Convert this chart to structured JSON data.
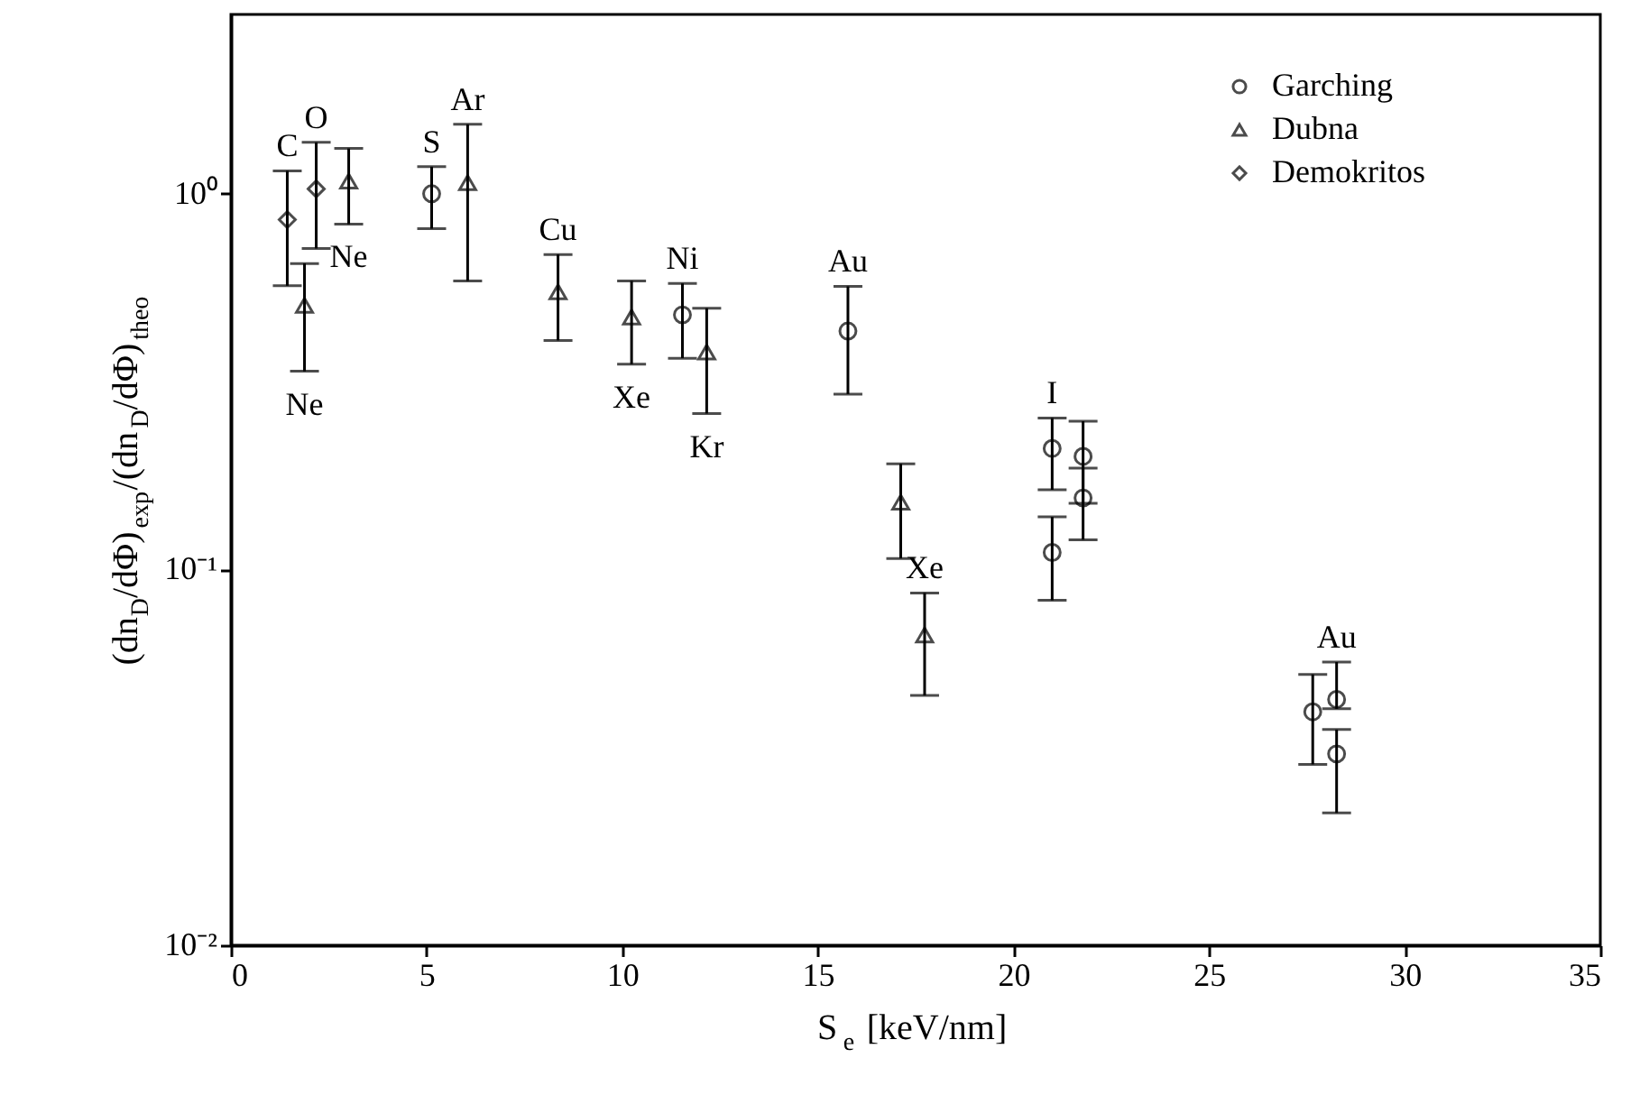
{
  "chart_data": {
    "type": "scatter",
    "xlabel": "S$_{e}$ [keV/nm]",
    "ylabel": "(dn$_{D}$/dΦ)$_{exp}$/(dn$_{D}$/dΦ)$_{theo}$",
    "log": "y",
    "xlim": [
      0,
      35
    ],
    "xticks": [
      0,
      5,
      10,
      15,
      20,
      25,
      30,
      35
    ],
    "ylim": [
      0.01,
      3
    ],
    "yticks": [
      {
        "value": 0.01,
        "label": "10⁻²"
      },
      {
        "value": 0.1,
        "label": "10⁻¹"
      },
      {
        "value": 1,
        "label": "10⁰"
      }
    ],
    "grid": false,
    "legend": "top right",
    "series": [
      {
        "name": "Garching",
        "color": "#000000",
        "marker": "circle",
        "x": [
          5.13,
          11.54,
          15.77,
          20.99,
          21.78,
          21.78,
          20.99,
          27.65,
          28.26,
          28.26
        ],
        "values": [
          1.0,
          0.476,
          0.431,
          0.21,
          0.2,
          0.155,
          0.111,
          0.0418,
          0.0451,
          0.0323
        ],
        "errors": [
          [
            0.807,
            1.18
          ],
          [
            0.365,
            0.577
          ],
          [
            0.293,
            0.567
          ],
          [
            0.163,
            0.253
          ],
          [
            0.15,
            0.248
          ],
          [
            0.12,
            0.186
          ],
          [
            0.0828,
            0.138
          ],
          [
            0.0303,
            0.0526
          ],
          [
            0.0426,
            0.0567
          ],
          [
            0.0225,
            0.0375
          ]
        ]
      },
      {
        "name": "Dubna",
        "color": "#000000",
        "marker": "triangle",
        "x": [
          1.88,
          3.01,
          6.05,
          8.36,
          10.24,
          12.16,
          17.12,
          17.73
        ],
        "values": [
          0.505,
          1.08,
          1.07,
          0.548,
          0.47,
          0.379,
          0.151,
          0.0669
        ],
        "errors": [
          [
            0.337,
            0.652
          ],
          [
            0.83,
            1.32
          ],
          [
            0.586,
            1.53
          ],
          [
            0.407,
            0.689
          ],
          [
            0.352,
            0.586
          ],
          [
            0.26,
            0.496
          ],
          [
            0.107,
            0.191
          ],
          [
            0.0462,
            0.0866
          ]
        ]
      },
      {
        "name": "Demokritos",
        "color": "#000000",
        "marker": "diamond",
        "x": [
          1.44,
          2.18
        ],
        "values": [
          0.853,
          1.03
        ],
        "errors": [
          [
            0.569,
            1.15
          ],
          [
            0.715,
            1.37
          ]
        ]
      }
    ],
    "annotations": [
      {
        "text": "C",
        "x": 1.44,
        "y": 1.15
      },
      {
        "text": "O",
        "x": 2.18,
        "y": 1.37
      },
      {
        "text": "Ne",
        "x": 3.01,
        "y": 0.83
      },
      {
        "text": "S",
        "x": 5.13,
        "y": 1.18
      },
      {
        "text": "Ar",
        "x": 6.05,
        "y": 1.53
      },
      {
        "text": "Ne",
        "x": 1.88,
        "y": 0.337
      },
      {
        "text": "Cu",
        "x": 8.36,
        "y": 0.689
      },
      {
        "text": "Xe",
        "x": 10.24,
        "y": 0.352
      },
      {
        "text": "Ni",
        "x": 11.54,
        "y": 0.577
      },
      {
        "text": "Kr",
        "x": 12.16,
        "y": 0.26
      },
      {
        "text": "Au",
        "x": 15.77,
        "y": 0.567
      },
      {
        "text": "I",
        "x": 20.99,
        "y": 0.253
      },
      {
        "text": "Xe",
        "x": 17.73,
        "y": 0.0866
      },
      {
        "text": "Au",
        "x": 28.26,
        "y": 0.0567
      }
    ]
  }
}
